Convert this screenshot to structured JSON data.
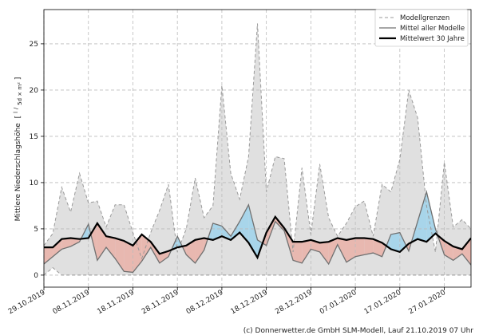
{
  "chart_data": {
    "type": "area",
    "ylabel": "Mittlere Niederschlagshöhe [ l / (m² 5d) ]",
    "ylim": [
      -1.3,
      28.7
    ],
    "yticks": [
      0,
      5,
      10,
      15,
      20,
      25
    ],
    "xticks": [
      "29.10.2019",
      "08.11.2019",
      "18.11.2019",
      "28.11.2019",
      "08.12.2019",
      "18.12.2019",
      "28.12.2019",
      "07.01.2020",
      "17.01.2020",
      "27.01.2020"
    ],
    "grid": true,
    "legend_position": "top-right",
    "x": [
      "29.10.2019",
      "31.10.2019",
      "02.11.2019",
      "04.11.2019",
      "06.11.2019",
      "08.11.2019",
      "10.11.2019",
      "12.11.2019",
      "14.11.2019",
      "16.11.2019",
      "18.11.2019",
      "20.11.2019",
      "22.11.2019",
      "24.11.2019",
      "26.11.2019",
      "28.11.2019",
      "30.11.2019",
      "02.12.2019",
      "04.12.2019",
      "06.12.2019",
      "08.12.2019",
      "10.12.2019",
      "12.12.2019",
      "14.12.2019",
      "16.12.2019",
      "18.12.2019",
      "20.12.2019",
      "22.12.2019",
      "24.12.2019",
      "26.12.2019",
      "28.12.2019",
      "30.12.2019",
      "01.01.2020",
      "03.01.2020",
      "05.01.2020",
      "07.01.2020",
      "09.01.2020",
      "11.01.2020",
      "13.01.2020",
      "15.01.2020",
      "17.01.2020",
      "19.01.2020",
      "21.01.2020",
      "23.01.2020",
      "25.01.2020",
      "27.01.2020",
      "29.01.2020",
      "31.01.2020",
      "02.02.2020"
    ],
    "series": [
      {
        "name": "Modellgrenzen",
        "style": "dashed",
        "color": "#999999",
        "role": "upper",
        "values": [
          3.2,
          4.5,
          9.5,
          6.8,
          11.0,
          7.8,
          8.0,
          5.2,
          7.6,
          7.6,
          4.6,
          1.8,
          4.6,
          7.0,
          9.8,
          2.5,
          5.0,
          10.5,
          6.2,
          7.5,
          20.5,
          11.0,
          8.2,
          12.8,
          27.2,
          9.0,
          12.8,
          12.6,
          2.5,
          11.6,
          4.4,
          12.0,
          6.2,
          4.2,
          5.6,
          7.4,
          8.0,
          4.2,
          9.8,
          9.0,
          12.5,
          20.0,
          17.0,
          7.5,
          2.5,
          12.2,
          5.2,
          6.0,
          5.0
        ]
      },
      {
        "name": "Modellgrenzen",
        "style": "dashed",
        "color": "#999999",
        "role": "lower",
        "values": [
          0.0,
          0.8,
          0.0,
          0.0,
          0.0,
          0.0,
          0.0,
          0.0,
          0.0,
          0.0,
          0.0,
          0.0,
          0.0,
          0.0,
          0.0,
          0.0,
          0.0,
          0.0,
          0.0,
          0.0,
          0.0,
          0.0,
          0.0,
          0.0,
          0.0,
          0.0,
          0.0,
          0.0,
          0.0,
          0.0,
          0.0,
          0.0,
          0.0,
          0.0,
          0.0,
          0.0,
          0.0,
          0.0,
          0.0,
          0.0,
          0.0,
          0.0,
          0.0,
          0.0,
          0.0,
          0.0,
          0.0,
          0.0,
          0.0
        ]
      },
      {
        "name": "Mittel aller Modelle",
        "style": "solid",
        "color": "#707070",
        "values": [
          1.2,
          2.0,
          2.8,
          3.1,
          3.6,
          5.5,
          1.6,
          3.0,
          1.8,
          0.4,
          0.3,
          1.5,
          3.0,
          1.3,
          2.0,
          4.2,
          2.2,
          1.3,
          2.7,
          5.6,
          5.3,
          4.2,
          5.8,
          7.6,
          3.8,
          3.2,
          5.8,
          4.8,
          1.6,
          1.3,
          2.8,
          2.5,
          1.2,
          3.3,
          1.4,
          2.0,
          2.2,
          2.4,
          2.0,
          4.4,
          4.6,
          2.6,
          5.8,
          9.0,
          5.0,
          2.2,
          1.6,
          2.3,
          1.1
        ]
      },
      {
        "name": "Mittelwert 30 Jahre",
        "style": "solid",
        "color": "#000000",
        "values": [
          3.0,
          3.0,
          3.9,
          4.0,
          3.9,
          4.0,
          5.6,
          4.2,
          4.0,
          3.7,
          3.2,
          4.4,
          3.6,
          2.3,
          2.6,
          3.0,
          3.2,
          3.8,
          4.0,
          3.8,
          4.2,
          3.8,
          4.6,
          3.5,
          1.9,
          4.6,
          6.3,
          5.1,
          3.6,
          3.6,
          3.8,
          3.5,
          3.6,
          4.0,
          3.8,
          4.0,
          4.0,
          3.9,
          3.5,
          2.8,
          2.5,
          3.4,
          3.9,
          3.6,
          4.5,
          3.7,
          3.1,
          2.8,
          4.0
        ]
      }
    ],
    "fills": {
      "between_bounds": "#e0e0e0",
      "mean_above_normal": "#a8d5ea",
      "mean_below_normal": "#e8b8b0"
    }
  },
  "legend": {
    "items": [
      {
        "label": "Modellgrenzen",
        "style": "dashed",
        "color": "#999999"
      },
      {
        "label": "Mittel aller Modelle",
        "style": "solid",
        "color": "#707070"
      },
      {
        "label": "Mittelwert 30 Jahre",
        "style": "solid",
        "color": "#000000"
      }
    ]
  },
  "ylabel_main": "Mittlere Niederschlagshöhe",
  "ylabel_num": "l",
  "ylabel_den": "5d × m²",
  "footer": "(c) Donnerwetter.de GmbH SLM-Modell, Lauf 21.10.2019 07 Uhr"
}
